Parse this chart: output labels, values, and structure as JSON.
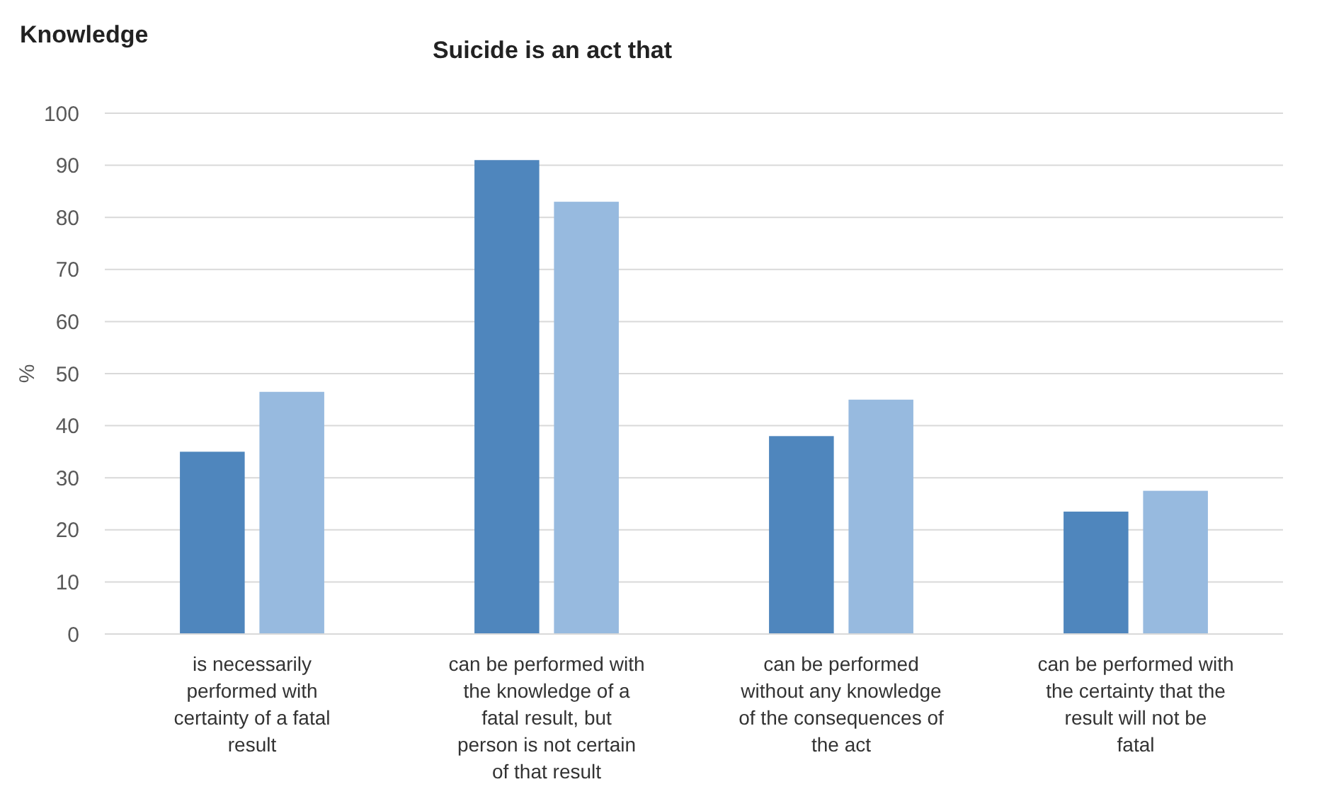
{
  "chart_data": {
    "type": "bar",
    "title": "Suicide is an act that",
    "ylabel": "%",
    "annotations": [
      "Knowledge"
    ],
    "categories": [
      "is necessarily performed with certainty of a fatal result",
      "can be  performed with the knowledge of a fatal result, but person is not certain of that result",
      "can be  performed without any knowledge of the consequences of the act",
      "can be performed with the certainty that the result will not be fatal"
    ],
    "series": [
      {
        "color": "#4f86bd",
        "values": [
          35,
          91,
          38,
          23.5
        ]
      },
      {
        "color": "#97badf",
        "values": [
          46.5,
          83,
          45,
          27.5
        ]
      }
    ],
    "ylim": [
      0,
      100
    ],
    "yticks": [
      0,
      10,
      20,
      30,
      40,
      50,
      60,
      70,
      80,
      90,
      100
    ],
    "grid": "y"
  }
}
